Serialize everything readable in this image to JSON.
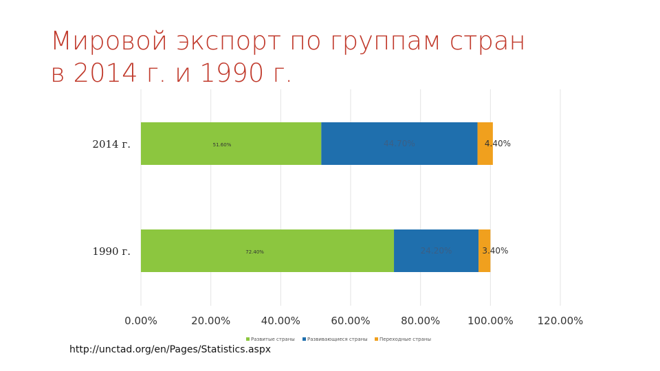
{
  "slide": {
    "title_line1": "Мировой экспорт по группам стран",
    "title_line2": "в 2014 г. и 1990 г.",
    "source": "http://unctad.org/en/Pages/Statistics.aspx"
  },
  "chart_data": {
    "type": "bar",
    "orientation": "horizontal",
    "stacked": true,
    "categories": [
      "2014 г.",
      "1990  г."
    ],
    "series": [
      {
        "name": "Развитые страны",
        "color": "#8cc63f",
        "values": [
          51.6,
          72.4
        ],
        "labels": [
          "51.60%",
          "72.40%"
        ]
      },
      {
        "name": "Развивающиеся страны",
        "color": "#1f6fad",
        "values": [
          44.7,
          24.2
        ],
        "labels": [
          "44.70%",
          "24.20%"
        ]
      },
      {
        "name": "Переходные страны",
        "color": "#f0a01e",
        "values": [
          4.4,
          3.4
        ],
        "labels": [
          "4.40%",
          "3.40%"
        ]
      }
    ],
    "xlim": [
      0,
      120
    ],
    "x_ticks": [
      0,
      20,
      40,
      60,
      80,
      100,
      120
    ],
    "x_tick_labels": [
      "0.00%",
      "20.00%",
      "40.00%",
      "60.00%",
      "80.00%",
      "100.00%",
      "120.00%"
    ],
    "grid": true,
    "legend_position": "bottom"
  }
}
